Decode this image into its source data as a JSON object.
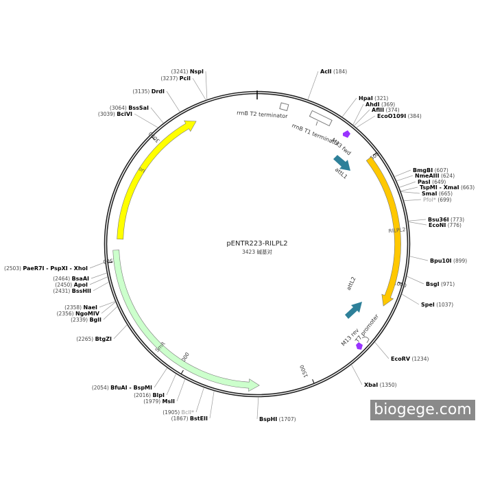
{
  "plasmid": {
    "name": "pENTR223-RILPL2",
    "size_label": "3423 碱基对",
    "length_bp": 3423
  },
  "ticks": [
    500,
    1000,
    1500,
    2000,
    2500,
    3000
  ],
  "features": [
    {
      "name": "ori",
      "start": 2587,
      "end": 3172,
      "direction": "cw",
      "color": "#ffff00"
    },
    {
      "name": "RILPL2",
      "start": 500,
      "end": 1104,
      "direction": "cw",
      "color": "#ffc800"
    },
    {
      "name": "SmR",
      "start": 1703,
      "end": 2544,
      "direction": "ccw",
      "color": "#ccffcc"
    }
  ],
  "small_features": [
    {
      "name": "rrnB T2 terminator",
      "color": "#ffffff"
    },
    {
      "name": "rrnB T1 terminator",
      "color": "#ffffff"
    },
    {
      "name": "M13 fwd",
      "color": "#9933ff"
    },
    {
      "name": "attL1",
      "color": "#2e8099"
    },
    {
      "name": "attL2",
      "color": "#2e8099"
    },
    {
      "name": "T7 promoter",
      "color": "#ffffff"
    },
    {
      "name": "M13 rev",
      "color": "#9933ff"
    }
  ],
  "sites": [
    {
      "name": "AclI",
      "pos": 184
    },
    {
      "name": "HpaI",
      "pos": 321
    },
    {
      "name": "AhdI",
      "pos": 369
    },
    {
      "name": "AflII",
      "pos": 374
    },
    {
      "name": "EcoO109I",
      "pos": 384
    },
    {
      "name": "BmgBI",
      "pos": 607
    },
    {
      "name": "NmeAIII",
      "pos": 624
    },
    {
      "name": "PasI",
      "pos": 649
    },
    {
      "name": "TspMI - XmaI",
      "pos": 663
    },
    {
      "name": "SmaI",
      "pos": 665
    },
    {
      "name": "PfoI*",
      "pos": 699,
      "gray": true
    },
    {
      "name": "Bsu36I",
      "pos": 773
    },
    {
      "name": "EcoNI",
      "pos": 776
    },
    {
      "name": "Bpu10I",
      "pos": 899
    },
    {
      "name": "BsgI",
      "pos": 971
    },
    {
      "name": "SpeI",
      "pos": 1037
    },
    {
      "name": "EcoRV",
      "pos": 1234
    },
    {
      "name": "XbaI",
      "pos": 1350
    },
    {
      "name": "BspHI",
      "pos": 1707
    },
    {
      "name": "BstEII",
      "pos": 1867
    },
    {
      "name": "BclI*",
      "pos": 1905,
      "gray": true
    },
    {
      "name": "MslI",
      "pos": 1979
    },
    {
      "name": "BlpI",
      "pos": 2016
    },
    {
      "name": "BfuAI - BspMI",
      "pos": 2054
    },
    {
      "name": "BtgZI",
      "pos": 2265
    },
    {
      "name": "BglI",
      "pos": 2339
    },
    {
      "name": "NgoMIV",
      "pos": 2356
    },
    {
      "name": "NaeI",
      "pos": 2358
    },
    {
      "name": "BssHII",
      "pos": 2431
    },
    {
      "name": "ApoI",
      "pos": 2450
    },
    {
      "name": "BsaAI",
      "pos": 2464
    },
    {
      "name": "PaeR7I - PspXI - XhoI",
      "pos": 2503
    },
    {
      "name": "BciVI",
      "pos": 3039
    },
    {
      "name": "BssSaI",
      "pos": 3064
    },
    {
      "name": "DrdI",
      "pos": 3135
    },
    {
      "name": "PciI",
      "pos": 3237
    },
    {
      "name": "NspI",
      "pos": 3241
    }
  ],
  "watermark": "biogege.com"
}
